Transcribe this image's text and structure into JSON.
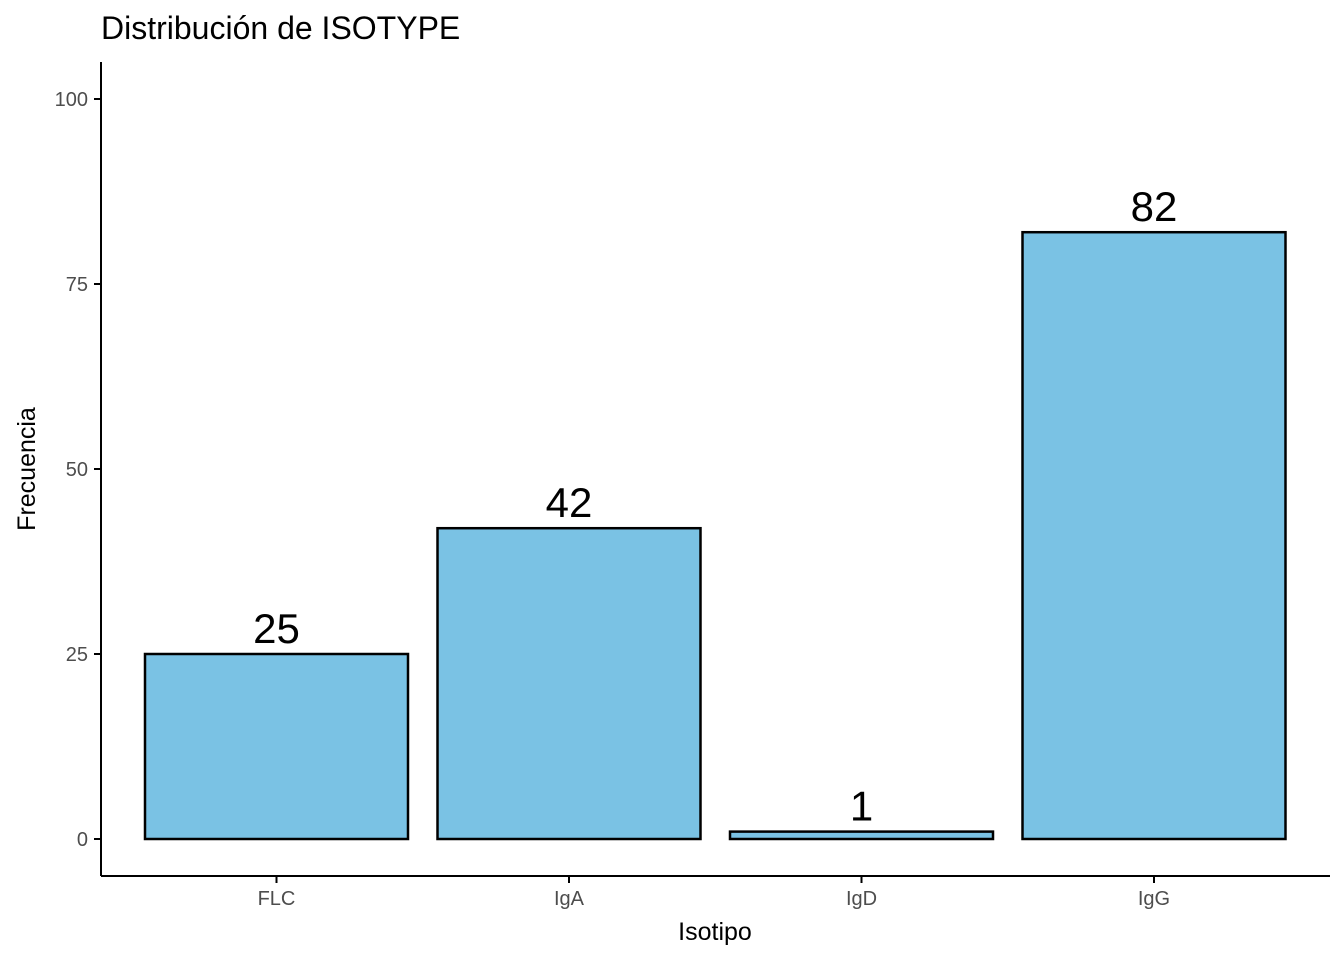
{
  "chart_data": {
    "type": "bar",
    "title": "Distribución de ISOTYPE",
    "xlabel": "Isotipo",
    "ylabel": "Frecuencia",
    "categories": [
      "FLC",
      "IgA",
      "IgD",
      "IgG"
    ],
    "values": [
      25,
      42,
      1,
      82
    ],
    "data_labels": [
      "25",
      "42",
      "1",
      "82"
    ],
    "y_ticks": [
      0,
      25,
      50,
      75,
      100
    ],
    "y_tick_labels": [
      "0",
      "25",
      "50",
      "75",
      "100"
    ],
    "ylim": [
      -5,
      105
    ],
    "grid": false,
    "legend": "none",
    "colors": {
      "bar_fill": "#7AC2E4",
      "bar_stroke": "#000000",
      "axis": "#000000",
      "tick_text": "#4d4d4d"
    }
  }
}
